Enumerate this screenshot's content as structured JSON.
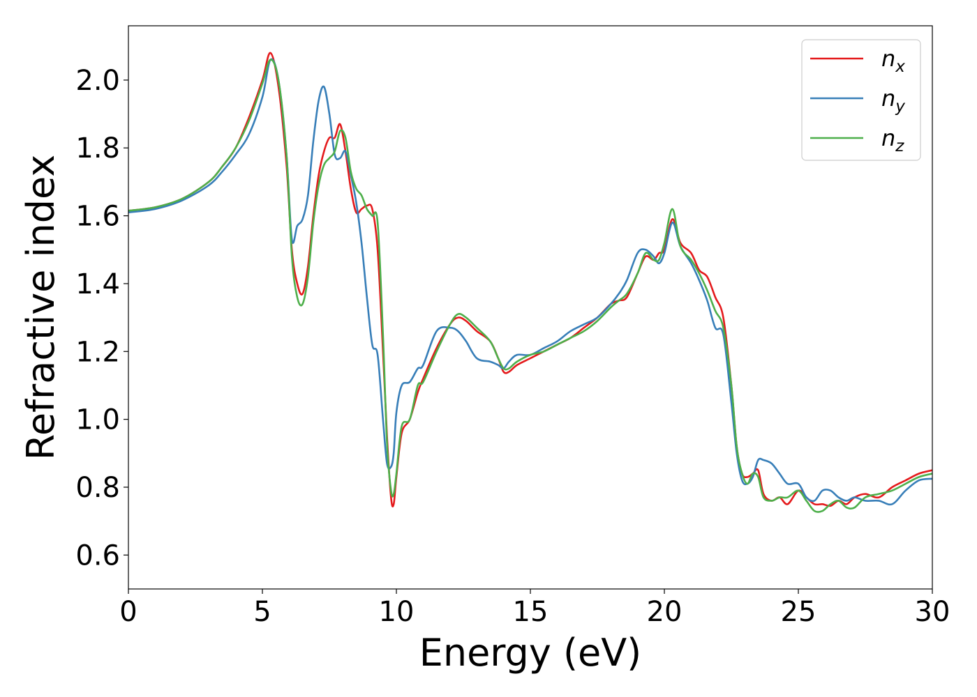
{
  "chart_data": {
    "type": "line",
    "xlabel": "Energy (eV)",
    "ylabel": "Refractive index",
    "xlim": [
      0,
      30
    ],
    "ylim": [
      0.5,
      2.16
    ],
    "xticks": [
      "0",
      "5",
      "10",
      "15",
      "20",
      "25",
      "30"
    ],
    "yticks": [
      "0.6",
      "0.8",
      "1.0",
      "1.2",
      "1.4",
      "1.6",
      "1.8",
      "2.0"
    ],
    "grid": false,
    "legend_position": "top-right",
    "series": [
      {
        "name": "n_x",
        "label_base": "n",
        "label_sub": "x",
        "color": "#e41a1c",
        "x": [
          0,
          1,
          2,
          3,
          3.5,
          4,
          4.5,
          5,
          5.3,
          5.6,
          5.9,
          6.1,
          6.3,
          6.5,
          6.7,
          6.9,
          7.1,
          7.3,
          7.5,
          7.7,
          7.9,
          8.1,
          8.3,
          8.5,
          8.7,
          8.9,
          9.1,
          9.3,
          9.5,
          9.65,
          9.8,
          9.9,
          10,
          10.2,
          10.5,
          10.8,
          11,
          11.5,
          12,
          12.3,
          12.6,
          13,
          13.5,
          13.8,
          14,
          14.2,
          14.5,
          15,
          15.5,
          16,
          16.5,
          17,
          17.5,
          18,
          18.3,
          18.6,
          19,
          19.3,
          19.6,
          19.8,
          20,
          20.3,
          20.6,
          21,
          21.3,
          21.6,
          21.9,
          22.2,
          22.5,
          22.7,
          22.9,
          23.1,
          23.3,
          23.5,
          23.7,
          24,
          24.3,
          24.6,
          25,
          25.3,
          25.6,
          25.9,
          26.2,
          26.5,
          26.8,
          27.1,
          27.5,
          28,
          28.5,
          29,
          29.5,
          30
        ],
        "y": [
          1.615,
          1.625,
          1.65,
          1.7,
          1.745,
          1.8,
          1.89,
          2.0,
          2.08,
          1.98,
          1.75,
          1.5,
          1.4,
          1.37,
          1.45,
          1.6,
          1.72,
          1.79,
          1.83,
          1.83,
          1.87,
          1.79,
          1.68,
          1.61,
          1.62,
          1.63,
          1.62,
          1.5,
          1.2,
          0.95,
          0.77,
          0.75,
          0.83,
          0.96,
          1.0,
          1.08,
          1.12,
          1.21,
          1.28,
          1.3,
          1.29,
          1.26,
          1.23,
          1.18,
          1.14,
          1.14,
          1.16,
          1.18,
          1.2,
          1.22,
          1.24,
          1.27,
          1.3,
          1.34,
          1.35,
          1.36,
          1.43,
          1.48,
          1.47,
          1.49,
          1.5,
          1.59,
          1.52,
          1.49,
          1.44,
          1.42,
          1.36,
          1.3,
          1.1,
          0.92,
          0.84,
          0.83,
          0.84,
          0.85,
          0.78,
          0.76,
          0.77,
          0.75,
          0.79,
          0.77,
          0.75,
          0.75,
          0.745,
          0.76,
          0.75,
          0.77,
          0.78,
          0.77,
          0.8,
          0.82,
          0.84,
          0.85
        ]
      },
      {
        "name": "n_y",
        "label_base": "n",
        "label_sub": "y",
        "color": "#377eb8",
        "x": [
          0,
          1,
          2,
          3,
          3.5,
          4,
          4.5,
          5,
          5.3,
          5.6,
          5.9,
          6.1,
          6.3,
          6.5,
          6.7,
          6.9,
          7.1,
          7.3,
          7.5,
          7.7,
          7.9,
          8.1,
          8.3,
          8.5,
          8.7,
          8.9,
          9.1,
          9.3,
          9.5,
          9.65,
          9.8,
          9.9,
          10,
          10.2,
          10.5,
          10.8,
          11,
          11.5,
          12,
          12.3,
          12.6,
          13,
          13.5,
          13.8,
          14,
          14.2,
          14.5,
          15,
          15.5,
          16,
          16.5,
          17,
          17.5,
          18,
          18.3,
          18.6,
          19,
          19.3,
          19.6,
          19.8,
          20,
          20.3,
          20.6,
          21,
          21.3,
          21.6,
          21.9,
          22.2,
          22.5,
          22.7,
          22.9,
          23.1,
          23.3,
          23.5,
          23.7,
          24,
          24.3,
          24.6,
          25,
          25.3,
          25.6,
          25.9,
          26.2,
          26.5,
          26.8,
          27.1,
          27.5,
          28,
          28.5,
          29,
          29.5,
          30
        ],
        "y": [
          1.61,
          1.62,
          1.645,
          1.69,
          1.73,
          1.78,
          1.84,
          1.95,
          2.06,
          2.0,
          1.78,
          1.53,
          1.57,
          1.59,
          1.66,
          1.82,
          1.94,
          1.98,
          1.9,
          1.78,
          1.77,
          1.79,
          1.72,
          1.64,
          1.52,
          1.36,
          1.22,
          1.19,
          1.0,
          0.87,
          0.86,
          0.9,
          1.02,
          1.1,
          1.11,
          1.15,
          1.16,
          1.26,
          1.27,
          1.26,
          1.23,
          1.18,
          1.17,
          1.16,
          1.15,
          1.17,
          1.19,
          1.19,
          1.21,
          1.23,
          1.26,
          1.28,
          1.3,
          1.34,
          1.37,
          1.41,
          1.49,
          1.5,
          1.48,
          1.46,
          1.49,
          1.58,
          1.51,
          1.46,
          1.41,
          1.35,
          1.27,
          1.25,
          1.05,
          0.9,
          0.82,
          0.81,
          0.83,
          0.88,
          0.88,
          0.87,
          0.84,
          0.81,
          0.81,
          0.77,
          0.76,
          0.79,
          0.79,
          0.77,
          0.76,
          0.77,
          0.76,
          0.76,
          0.75,
          0.79,
          0.82,
          0.825
        ]
      },
      {
        "name": "n_z",
        "label_base": "n",
        "label_sub": "z",
        "color": "#4daf4a",
        "x": [
          0,
          1,
          2,
          3,
          3.5,
          4,
          4.5,
          5,
          5.3,
          5.6,
          5.9,
          6.1,
          6.3,
          6.5,
          6.7,
          6.9,
          7.1,
          7.3,
          7.5,
          7.7,
          7.9,
          8.1,
          8.3,
          8.5,
          8.7,
          8.9,
          9.1,
          9.3,
          9.5,
          9.65,
          9.8,
          9.9,
          10,
          10.2,
          10.5,
          10.8,
          11,
          11.5,
          12,
          12.3,
          12.6,
          13,
          13.5,
          13.8,
          14,
          14.2,
          14.5,
          15,
          15.5,
          16,
          16.5,
          17,
          17.5,
          18,
          18.3,
          18.6,
          19,
          19.3,
          19.6,
          19.8,
          20,
          20.3,
          20.6,
          21,
          21.3,
          21.6,
          21.9,
          22.2,
          22.5,
          22.7,
          22.9,
          23.1,
          23.3,
          23.5,
          23.7,
          24,
          24.3,
          24.6,
          25,
          25.3,
          25.6,
          25.9,
          26.2,
          26.5,
          26.8,
          27.1,
          27.5,
          28,
          28.5,
          29,
          29.5,
          30
        ],
        "y": [
          1.615,
          1.625,
          1.65,
          1.7,
          1.745,
          1.8,
          1.88,
          1.99,
          2.06,
          2.0,
          1.78,
          1.48,
          1.36,
          1.34,
          1.42,
          1.58,
          1.69,
          1.75,
          1.77,
          1.79,
          1.85,
          1.83,
          1.73,
          1.68,
          1.66,
          1.62,
          1.6,
          1.58,
          1.25,
          0.93,
          0.79,
          0.78,
          0.84,
          0.98,
          1.0,
          1.1,
          1.11,
          1.2,
          1.28,
          1.31,
          1.3,
          1.27,
          1.23,
          1.18,
          1.15,
          1.15,
          1.17,
          1.19,
          1.2,
          1.22,
          1.24,
          1.26,
          1.29,
          1.33,
          1.35,
          1.37,
          1.43,
          1.49,
          1.47,
          1.47,
          1.52,
          1.62,
          1.51,
          1.47,
          1.43,
          1.38,
          1.32,
          1.27,
          1.1,
          0.92,
          0.84,
          0.81,
          0.84,
          0.83,
          0.77,
          0.76,
          0.77,
          0.77,
          0.79,
          0.76,
          0.73,
          0.73,
          0.75,
          0.76,
          0.74,
          0.74,
          0.77,
          0.78,
          0.79,
          0.81,
          0.83,
          0.84
        ]
      }
    ]
  }
}
